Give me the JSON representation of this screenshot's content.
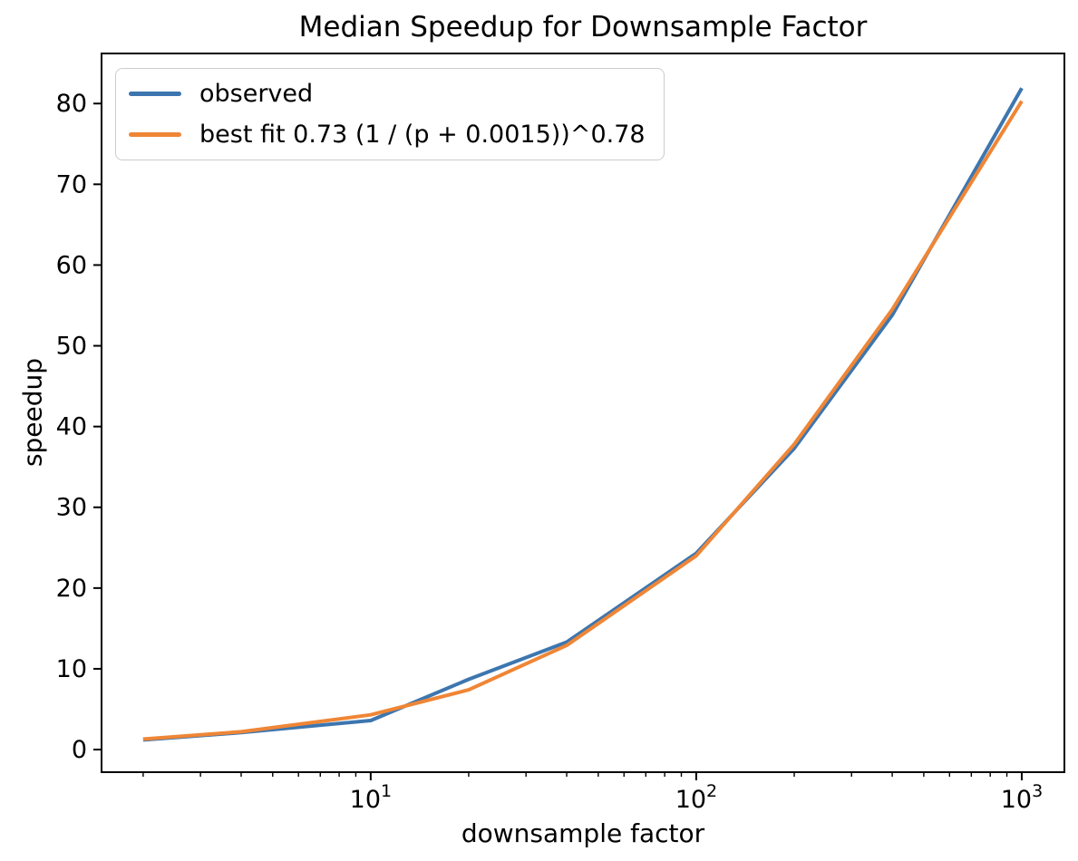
{
  "figure": {
    "background": "#ffffff",
    "text_color": "#000000",
    "spine_color": "#000000"
  },
  "chart_data": {
    "type": "line",
    "title": "Median Speedup for Downsample Factor",
    "xlabel": "downsample factor",
    "ylabel": "speedup",
    "x_scale": "log",
    "grid": false,
    "legend_position": "upper-left",
    "xlim": [
      1.49,
      1352
    ],
    "ylim": [
      -2.8,
      86.2
    ],
    "y_ticks": [
      0,
      10,
      20,
      30,
      40,
      50,
      60,
      70,
      80
    ],
    "x_major_ticks": [
      10,
      100,
      1000
    ],
    "x_major_tick_labels": [
      {
        "base": "10",
        "exp": "1"
      },
      {
        "base": "10",
        "exp": "2"
      },
      {
        "base": "10",
        "exp": "3"
      }
    ],
    "x": [
      2,
      4,
      10,
      20,
      40,
      100,
      200,
      400,
      1000
    ],
    "series": [
      {
        "name": "observed",
        "color": "#3d76af",
        "values": [
          1.2,
          2.1,
          3.6,
          8.7,
          13.3,
          24.3,
          37.3,
          53.8,
          81.9
        ]
      },
      {
        "name": "best fit 0.73 (1 / (p + 0.0015))^0.78",
        "color": "#ef8636",
        "values": [
          1.3,
          2.2,
          4.3,
          7.4,
          12.9,
          24.0,
          37.8,
          54.5,
          80.3
        ]
      }
    ]
  }
}
